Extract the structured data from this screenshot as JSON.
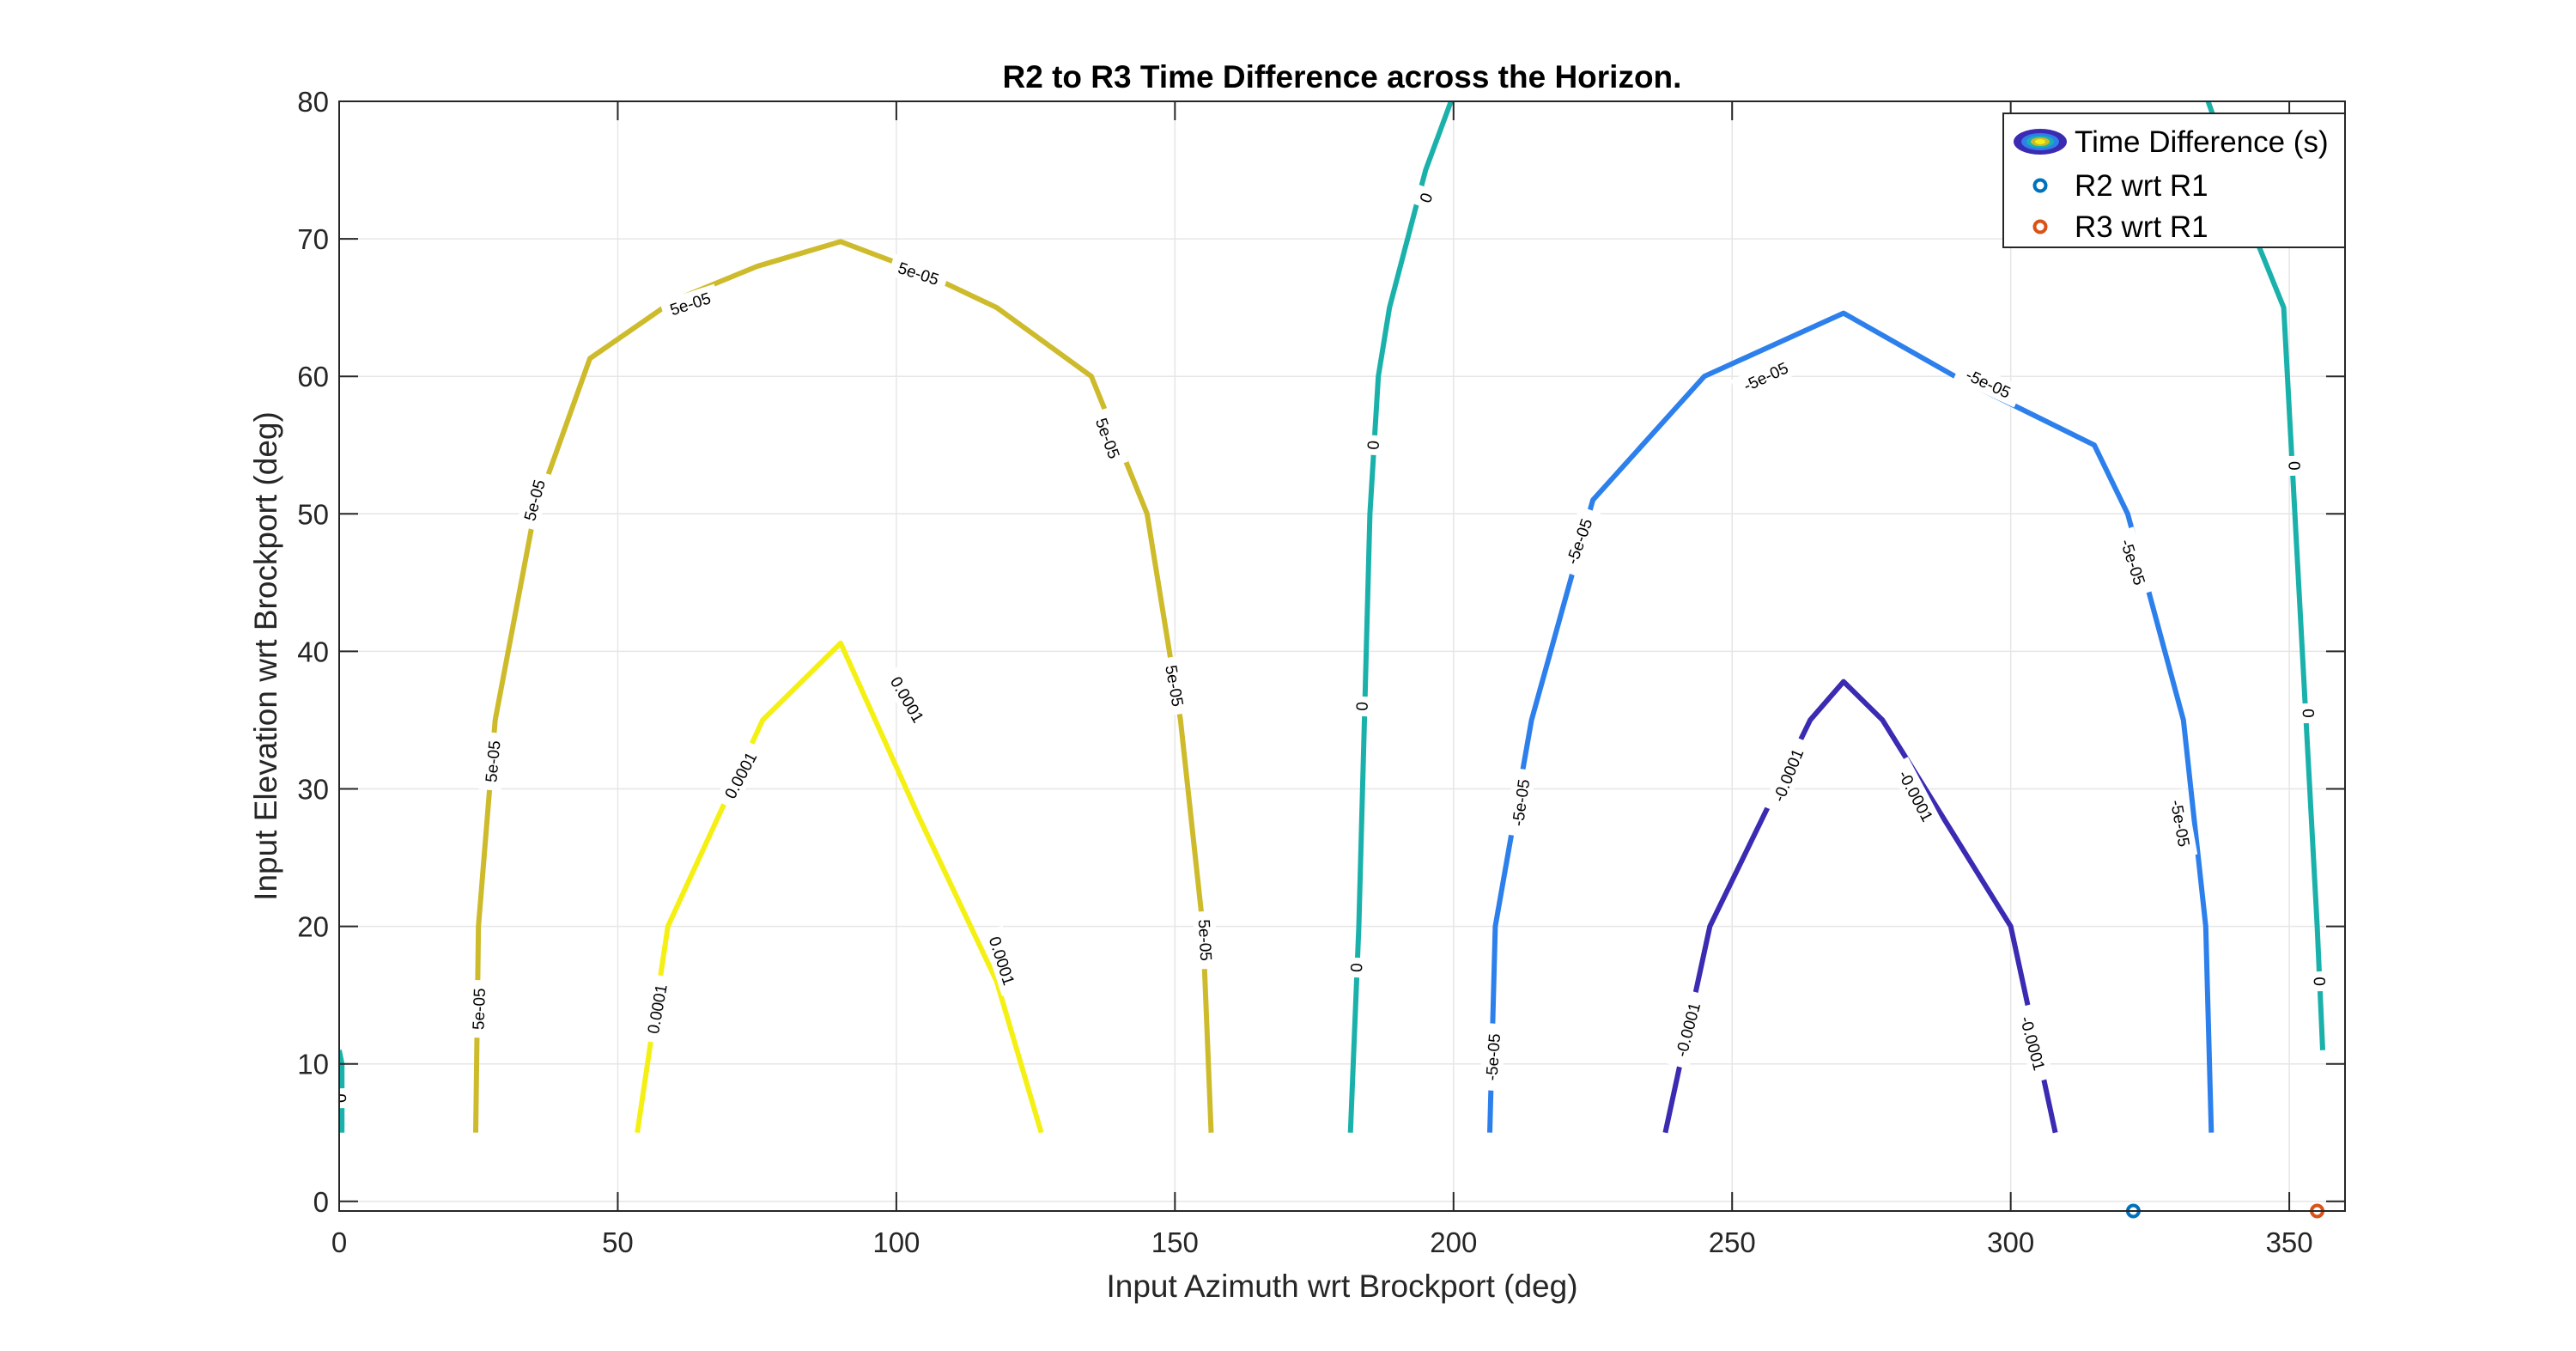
{
  "chart_data": {
    "type": "contour",
    "title": "R2 to R3 Time Difference across the Horizon.",
    "xlabel": "Input Azimuth wrt Brockport (deg)",
    "ylabel": "Input Elevation wrt Brockport (deg)",
    "xlim": [
      0,
      360
    ],
    "ylim": [
      -0.7,
      80
    ],
    "xticks": [
      0,
      50,
      100,
      150,
      200,
      250,
      300,
      350
    ],
    "yticks": [
      0,
      10,
      20,
      30,
      40,
      50,
      60,
      70,
      80
    ],
    "grid": true,
    "legend": {
      "placement": "top-right",
      "entries": [
        {
          "label": "Time Difference (s)",
          "marker": "contour"
        },
        {
          "label": "R2 wrt R1",
          "marker": "circle",
          "color": "#0072BD"
        },
        {
          "label": "R3 wrt R1",
          "marker": "circle",
          "color": "#D95319"
        }
      ]
    },
    "contours": [
      {
        "level": "0",
        "color": "#1BB1AB",
        "points": [
          [
            0,
            11
          ],
          [
            0.5,
            10
          ],
          [
            0.5,
            5
          ]
        ],
        "labels": [
          {
            "x": 0.3,
            "y": 7.5,
            "rot": 88
          }
        ]
      },
      {
        "level": "5e-05",
        "color": "#CEBB2C",
        "points": [
          [
            24.5,
            5
          ],
          [
            25,
            20
          ],
          [
            28,
            35
          ],
          [
            35,
            50
          ],
          [
            45,
            61.3
          ],
          [
            60,
            65.5
          ],
          [
            75,
            68
          ],
          [
            90,
            69.8
          ],
          [
            105,
            67.5
          ],
          [
            118,
            65
          ],
          [
            135,
            60
          ],
          [
            145,
            50
          ],
          [
            151,
            35
          ],
          [
            155,
            20
          ],
          [
            156.5,
            5
          ]
        ],
        "labels": [
          {
            "x": 25,
            "y": 14,
            "rot": -88
          },
          {
            "x": 27.5,
            "y": 32,
            "rot": -85
          },
          {
            "x": 35,
            "y": 51,
            "rot": -75
          },
          {
            "x": 63,
            "y": 65.3,
            "rot": -18
          },
          {
            "x": 104,
            "y": 67.5,
            "rot": 18
          },
          {
            "x": 138,
            "y": 55.5,
            "rot": 70
          },
          {
            "x": 150,
            "y": 37.5,
            "rot": 80
          },
          {
            "x": 155.5,
            "y": 19,
            "rot": 87
          }
        ]
      },
      {
        "level": "0.0001",
        "color": "#F5F014",
        "points": [
          [
            53.5,
            5
          ],
          [
            59,
            20
          ],
          [
            76,
            35
          ],
          [
            90,
            40.6
          ],
          [
            104,
            28
          ],
          [
            118,
            16
          ],
          [
            126,
            5
          ]
        ],
        "labels": [
          {
            "x": 57,
            "y": 14,
            "rot": -80
          },
          {
            "x": 72,
            "y": 31,
            "rot": -62
          },
          {
            "x": 102,
            "y": 36.5,
            "rot": 60
          },
          {
            "x": 119,
            "y": 17.5,
            "rot": 72
          }
        ]
      },
      {
        "level": "0",
        "color": "#1BB1AB",
        "points": [
          [
            181.5,
            5
          ],
          [
            183,
            20
          ],
          [
            184,
            35
          ],
          [
            185,
            50
          ],
          [
            186.5,
            60
          ],
          [
            188.5,
            65
          ],
          [
            195,
            75
          ],
          [
            200,
            80.5
          ]
        ],
        "labels": [
          {
            "x": 182.5,
            "y": 17,
            "rot": -88
          },
          {
            "x": 183.5,
            "y": 36,
            "rot": -88
          },
          {
            "x": 185.5,
            "y": 55,
            "rot": -86
          },
          {
            "x": 195,
            "y": 73,
            "rot": -70
          }
        ]
      },
      {
        "level": "-5e-05",
        "color": "#2D80EC",
        "points": [
          [
            206.5,
            5
          ],
          [
            207.5,
            20
          ],
          [
            214,
            35
          ],
          [
            225,
            51
          ],
          [
            245,
            60
          ],
          [
            270,
            64.6
          ],
          [
            290,
            60
          ],
          [
            315,
            55
          ],
          [
            321,
            50
          ],
          [
            331,
            35
          ],
          [
            335,
            20
          ],
          [
            336,
            5
          ]
        ],
        "labels": [
          {
            "x": 207,
            "y": 10.5,
            "rot": -86
          },
          {
            "x": 212,
            "y": 29,
            "rot": -82
          },
          {
            "x": 222.5,
            "y": 48,
            "rot": -70
          },
          {
            "x": 256,
            "y": 60,
            "rot": -25
          },
          {
            "x": 296,
            "y": 59.5,
            "rot": 25
          },
          {
            "x": 322,
            "y": 46.5,
            "rot": 72
          },
          {
            "x": 330.5,
            "y": 27.5,
            "rot": 80
          }
        ]
      },
      {
        "level": "-0.0001",
        "color": "#3A2BB2",
        "points": [
          [
            238,
            5
          ],
          [
            246,
            20
          ],
          [
            264,
            35
          ],
          [
            270,
            37.8
          ],
          [
            277,
            35
          ],
          [
            300,
            20
          ],
          [
            308,
            5
          ]
        ],
        "labels": [
          {
            "x": 242,
            "y": 12.5,
            "rot": -75
          },
          {
            "x": 260,
            "y": 31,
            "rot": -68
          },
          {
            "x": 283,
            "y": 29.5,
            "rot": 62
          },
          {
            "x": 304,
            "y": 11.5,
            "rot": 75
          }
        ]
      },
      {
        "level": "0",
        "color": "#1BB1AB",
        "points": [
          [
            335,
            80.5
          ],
          [
            344,
            70
          ],
          [
            349,
            65
          ],
          [
            351,
            50
          ],
          [
            353,
            35
          ],
          [
            355,
            20
          ],
          [
            356,
            11
          ]
        ],
        "labels": [
          {
            "x": 351,
            "y": 53.5,
            "rot": 88
          },
          {
            "x": 353.5,
            "y": 35.5,
            "rot": 88
          },
          {
            "x": 355.5,
            "y": 16,
            "rot": 88
          }
        ]
      }
    ],
    "scatter": [
      {
        "name": "R2 wrt R1",
        "color": "#0072BD",
        "x": 322,
        "y": -0.7
      },
      {
        "name": "R3 wrt R1",
        "color": "#D95319",
        "x": 355,
        "y": -0.7
      }
    ]
  }
}
